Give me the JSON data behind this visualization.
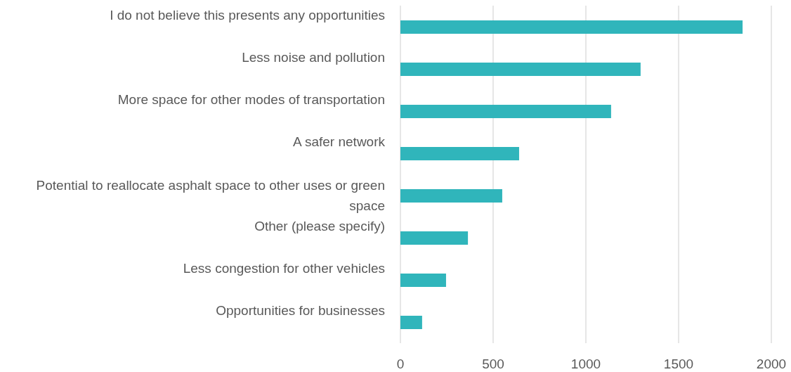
{
  "chart_data": {
    "type": "bar",
    "orientation": "horizontal",
    "categories": [
      "I do not believe this presents any opportunities",
      "Less noise and pollution",
      "More space for other modes of transportation",
      "A safer network",
      "Potential to reallocate asphalt space to other uses or green space",
      "Other (please specify)",
      "Less congestion for other vehicles",
      "Opportunities for businesses"
    ],
    "values": [
      1845,
      1295,
      1136,
      640,
      549,
      364,
      246,
      117
    ],
    "color": "#30b5bb",
    "xlim": [
      0,
      2000
    ],
    "xticks": [
      0,
      500,
      1000,
      1500,
      2000
    ],
    "grid": "x"
  }
}
